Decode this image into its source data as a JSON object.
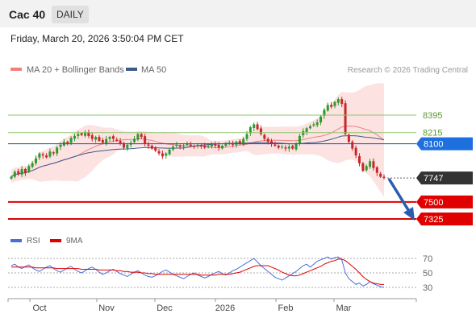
{
  "header": {
    "title": "Cac 40",
    "period": "DAILY"
  },
  "timestamp": "Friday, March 20, 2026 3:50:04 PM CET",
  "legend": {
    "ma20": "MA 20 + Bollinger Bands",
    "ma50": "MA 50",
    "copyright": "Research © 2026 Trading Central"
  },
  "rsi_legend": {
    "rsi": "RSI",
    "ma9": "9MA"
  },
  "colors": {
    "up": "#2e9a2e",
    "down": "#c62828",
    "band_fill": "#fde2e2",
    "ma20": "#f08080",
    "ma50": "#3c5a8c",
    "resistance": "#8fc46b",
    "pivot": "#1565c0",
    "support": "#e00000",
    "current": "#333333",
    "rsi": "#4a6fd8",
    "rsi_ma": "#e00000"
  },
  "chart_data": {
    "type": "candlestick",
    "x_labels": [
      "Oct",
      "Nov",
      "Dec",
      "2026",
      "Feb",
      "Mar"
    ],
    "y_range": [
      7280,
      8620
    ],
    "levels": [
      {
        "value": 8395,
        "label": "8395",
        "kind": "resistance"
      },
      {
        "value": 8215,
        "label": "8215",
        "kind": "resistance"
      },
      {
        "value": 8100,
        "label": "8100",
        "kind": "pivot"
      },
      {
        "value": 7747,
        "label": "7747",
        "kind": "current"
      },
      {
        "value": 7500,
        "label": "7500",
        "kind": "support"
      },
      {
        "value": 7325,
        "label": "7325",
        "kind": "support"
      }
    ],
    "close": [
      7760,
      7810,
      7790,
      7840,
      7800,
      7870,
      7900,
      7950,
      8000,
      7980,
      7960,
      8020,
      8000,
      8060,
      8090,
      8120,
      8100,
      8160,
      8180,
      8200,
      8190,
      8220,
      8180,
      8150,
      8170,
      8130,
      8110,
      8150,
      8170,
      8150,
      8130,
      8100,
      8060,
      8090,
      8110,
      8150,
      8200,
      8170,
      8100,
      8080,
      8050,
      8030,
      8000,
      7970,
      8000,
      8040,
      8070,
      8090,
      8070,
      8080,
      8100,
      8080,
      8070,
      8090,
      8080,
      8060,
      8080,
      8100,
      8080,
      8060,
      8080,
      8100,
      8110,
      8090,
      8120,
      8100,
      8150,
      8200,
      8270,
      8300,
      8250,
      8200,
      8150,
      8120,
      8100,
      8080,
      8060,
      8070,
      8050,
      8070,
      8050,
      8100,
      8180,
      8230,
      8260,
      8280,
      8300,
      8320,
      8380,
      8450,
      8500,
      8480,
      8530,
      8560,
      8510,
      8200,
      8120,
      8050,
      7980,
      7900,
      7820,
      7870,
      7920,
      7850,
      7800,
      7760,
      7747
    ],
    "rsi": {
      "ticks": [
        70,
        50,
        30
      ],
      "rsi": [
        60,
        62,
        58,
        56,
        59,
        61,
        57,
        54,
        52,
        55,
        58,
        60,
        56,
        53,
        51,
        54,
        57,
        59,
        55,
        52,
        50,
        53,
        56,
        58,
        55,
        51,
        48,
        50,
        53,
        55,
        52,
        49,
        47,
        45,
        48,
        51,
        53,
        50,
        47,
        45,
        44,
        46,
        49,
        52,
        54,
        51,
        48,
        46,
        44,
        42,
        45,
        48,
        50,
        47,
        45,
        43,
        45,
        48,
        50,
        52,
        49,
        47,
        50,
        53,
        55,
        58,
        61,
        64,
        67,
        70,
        65,
        60,
        56,
        52,
        48,
        44,
        42,
        40,
        43,
        46,
        49,
        52,
        56,
        60,
        62,
        58,
        62,
        66,
        68,
        70,
        72,
        69,
        71,
        72,
        68,
        50,
        42,
        38,
        34,
        36,
        32,
        34,
        38,
        35,
        33,
        31,
        30
      ],
      "ma": [
        58,
        58,
        58,
        58,
        58,
        58,
        58,
        57,
        57,
        57,
        57,
        57,
        57,
        56,
        56,
        56,
        56,
        56,
        56,
        56,
        55,
        55,
        55,
        55,
        55,
        54,
        54,
        54,
        54,
        54,
        53,
        53,
        52,
        52,
        51,
        51,
        51,
        50,
        50,
        49,
        49,
        48,
        48,
        48,
        48,
        48,
        48,
        48,
        48,
        48,
        48,
        48,
        48,
        48,
        47,
        47,
        47,
        47,
        47,
        48,
        48,
        48,
        48,
        49,
        50,
        51,
        53,
        55,
        57,
        59,
        60,
        60,
        60,
        60,
        58,
        56,
        54,
        51,
        49,
        47,
        46,
        46,
        47,
        49,
        51,
        53,
        55,
        57,
        59,
        62,
        64,
        66,
        67,
        69,
        69,
        67,
        63,
        59,
        55,
        50,
        45,
        41,
        38,
        36,
        35,
        34,
        34
      ]
    }
  }
}
